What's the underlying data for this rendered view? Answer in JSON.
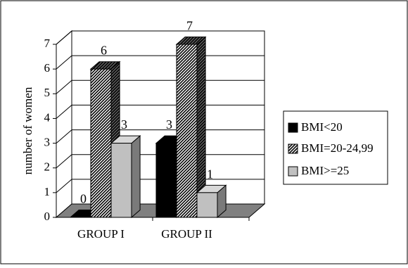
{
  "chart_data": {
    "type": "bar",
    "title": "",
    "xlabel": "",
    "ylabel": "number of women",
    "ylim": [
      0,
      7
    ],
    "yticks": [
      0,
      1,
      2,
      3,
      4,
      5,
      6,
      7
    ],
    "categories": [
      "GROUP I",
      "GROUP II"
    ],
    "series": [
      {
        "name": "BMI<20",
        "values": [
          0,
          3
        ],
        "color": "#000000",
        "pattern": "solid"
      },
      {
        "name": "BMI=20-24,99",
        "values": [
          6,
          7
        ],
        "color": "#b0b0b0",
        "pattern": "hatch"
      },
      {
        "name": "BMI>=25",
        "values": [
          3,
          1
        ],
        "color": "#c0c0c0",
        "pattern": "solid"
      }
    ],
    "data_labels": [
      [
        "0",
        "3"
      ],
      [
        "6",
        "7"
      ],
      [
        "3",
        "1"
      ]
    ],
    "grid": true,
    "legend_position": "right",
    "style": "3d"
  }
}
